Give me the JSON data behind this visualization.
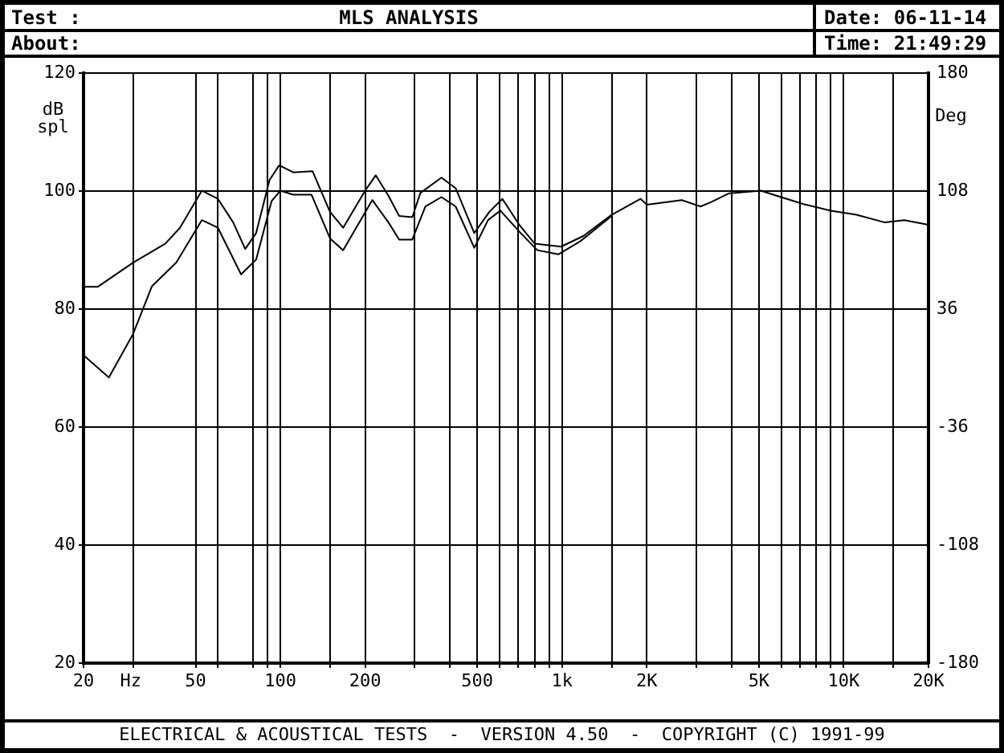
{
  "chart_data": {
    "type": "line",
    "title": "MLS ANALYSIS",
    "annotations": [
      "Test :",
      "About:",
      "Date: 06-11-14",
      "Time: 21:49:29",
      "ELECTRICAL & ACOUSTICAL TESTS  -  VERSION 4.50  -  COPYRIGHT (C) 1991-99"
    ],
    "xlabel": "Hz",
    "ylabel": "dB spl",
    "y2label": "Deg",
    "series": [
      {
        "color": "#000000",
        "x": [
          20,
          22.5,
          30,
          39,
          44,
          52.6,
          60,
          68,
          75,
          82,
          91.5,
          99,
          111,
          130,
          150,
          167,
          200,
          218,
          242,
          264,
          294,
          314,
          373,
          419,
          488,
          552,
          614,
          705,
          800,
          992,
          1190,
          1500,
          1900,
          2000,
          2660,
          3100,
          3400,
          3900,
          5080,
          5800,
          7200,
          9000,
          11100,
          14000,
          16400,
          19000,
          20000
        ],
        "values": [
          83.8,
          83.8,
          87.9,
          91.1,
          93.8,
          100.1,
          98.7,
          94.7,
          90.2,
          92.9,
          101.9,
          104.4,
          103.2,
          103.4,
          96.5,
          93.8,
          100.1,
          102.7,
          99.2,
          95.8,
          95.6,
          99.7,
          102.3,
          100.5,
          92.9,
          96.5,
          98.7,
          94.3,
          91.1,
          90.6,
          92.4,
          96.0,
          98.7,
          97.7,
          98.5,
          97.4,
          98.2,
          99.6,
          100.1,
          99.2,
          97.8,
          96.7,
          96.0,
          94.7,
          95.1,
          94.5,
          94.3
        ]
      },
      {
        "color": "#000000",
        "x": [
          20,
          24.6,
          30,
          35,
          42.7,
          52.6,
          60,
          72.5,
          82,
          93,
          100,
          111,
          129,
          150,
          167,
          212,
          242,
          264,
          294,
          327,
          373,
          419,
          488,
          546,
          604,
          713,
          817,
          970,
          1160,
          1500
        ],
        "values": [
          72.2,
          68.4,
          75.8,
          83.9,
          87.9,
          95.1,
          93.8,
          85.9,
          88.4,
          98.3,
          100.1,
          99.4,
          99.4,
          92.0,
          90.0,
          98.5,
          94.7,
          91.8,
          91.8,
          97.4,
          99.0,
          97.4,
          90.4,
          95.1,
          96.7,
          92.9,
          90.0,
          89.3,
          91.5,
          95.8
        ]
      }
    ],
    "log": "x",
    "xlim": [
      20,
      20000
    ],
    "xticks": [
      20,
      {
        "value": 30,
        "label": null
      },
      50,
      {
        "value": 60,
        "label": null
      },
      {
        "value": 80,
        "label": null
      },
      {
        "value": 90,
        "label": null
      },
      100,
      {
        "value": 150,
        "label": null
      },
      200,
      {
        "value": 300,
        "label": null
      },
      {
        "value": 400,
        "label": null
      },
      500,
      {
        "value": 600,
        "label": null
      },
      {
        "value": 700,
        "label": null
      },
      {
        "value": 800,
        "label": null
      },
      {
        "value": 900,
        "label": null
      },
      {
        "value": 1000,
        "label": "1k"
      },
      {
        "value": 1500,
        "label": null
      },
      {
        "value": 2000,
        "label": "2K"
      },
      {
        "value": 3000,
        "label": null
      },
      {
        "value": 4000,
        "label": null
      },
      {
        "value": 5000,
        "label": "5K"
      },
      {
        "value": 6000,
        "label": null
      },
      {
        "value": 7000,
        "label": null
      },
      {
        "value": 8000,
        "label": null
      },
      {
        "value": 9000,
        "label": null
      },
      {
        "value": 10000,
        "label": "10K"
      },
      {
        "value": 15000,
        "label": null
      },
      {
        "value": 20000,
        "label": "20K"
      }
    ],
    "ylim": [
      20,
      120
    ],
    "yticks": [
      20,
      40,
      60,
      80,
      100,
      120
    ],
    "y2lim": [
      -180,
      180
    ],
    "y2ticks": [
      -180,
      -108,
      -36,
      36,
      108,
      180
    ],
    "grid": true,
    "legend": false
  }
}
